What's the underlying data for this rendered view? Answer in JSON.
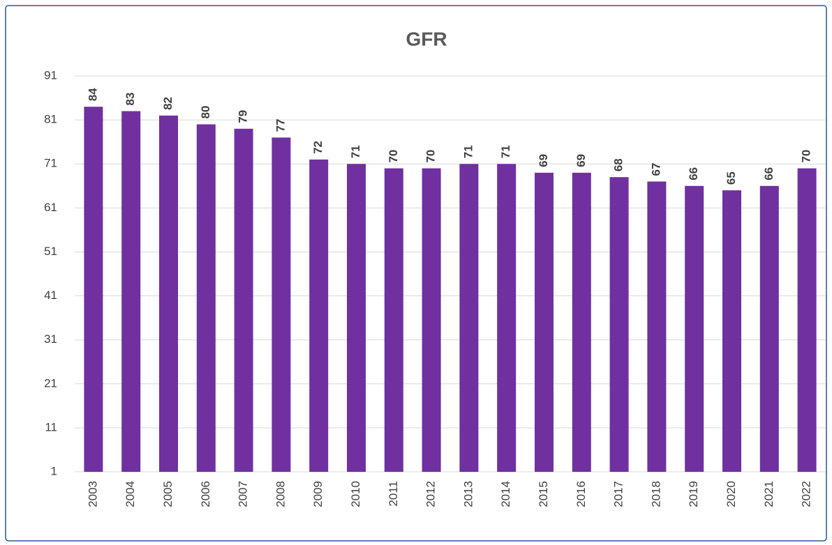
{
  "chart_data": {
    "type": "bar",
    "title": "GFR",
    "categories": [
      "2003",
      "2004",
      "2005",
      "2006",
      "2007",
      "2008",
      "2009",
      "2010",
      "2011",
      "2012",
      "2013",
      "2014",
      "2015",
      "2016",
      "2017",
      "2018",
      "2019",
      "2020",
      "2021",
      "2022"
    ],
    "values": [
      84,
      83,
      82,
      80,
      79,
      77,
      72,
      71,
      70,
      70,
      71,
      71,
      69,
      69,
      68,
      67,
      66,
      65,
      66,
      70
    ],
    "color": "#7030a0",
    "ylim": [
      1,
      91
    ],
    "yticks": [
      1,
      11,
      21,
      31,
      41,
      51,
      61,
      71,
      81,
      91
    ],
    "grid": true
  }
}
